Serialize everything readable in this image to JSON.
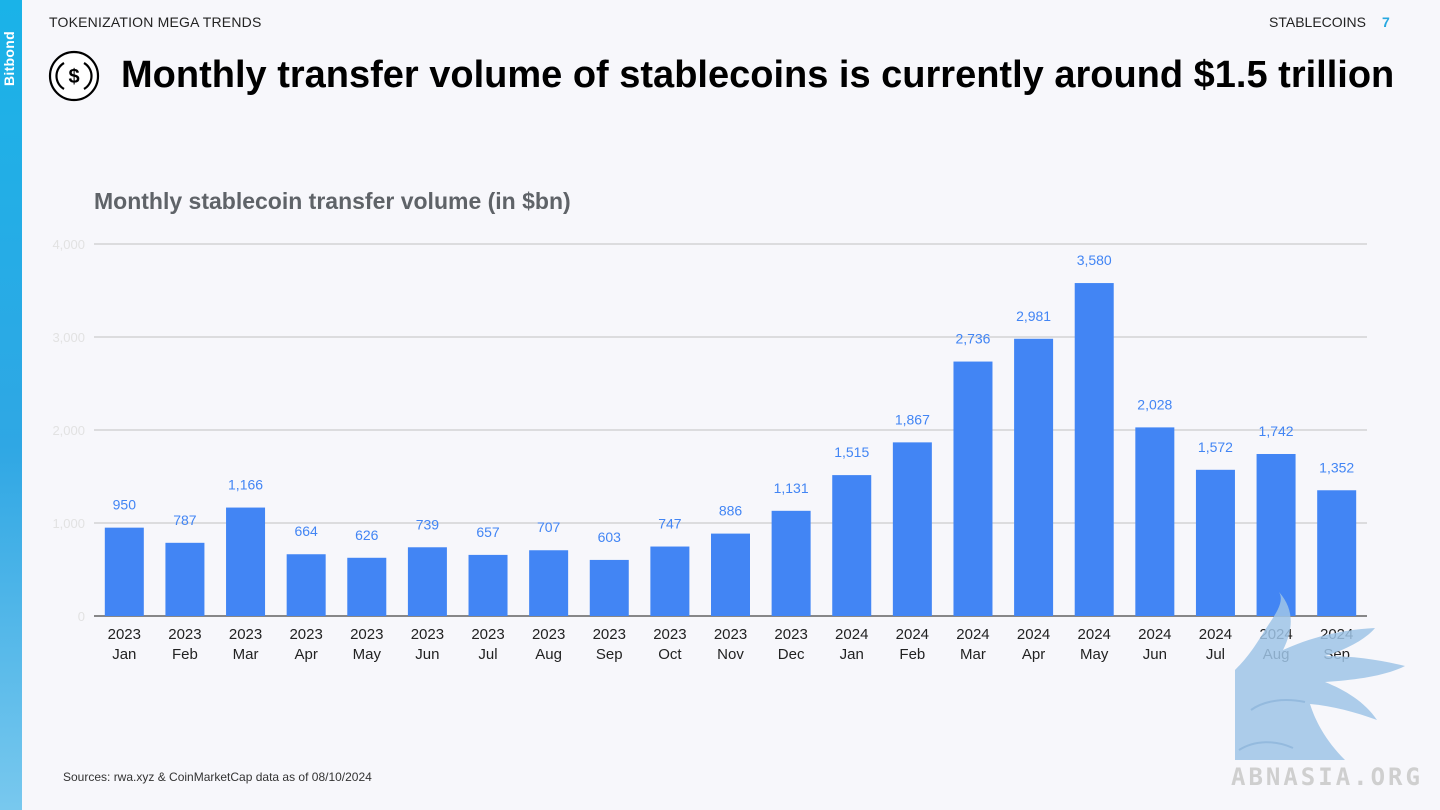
{
  "header": {
    "left_label": "TOKENIZATION MEGA TRENDS",
    "section_label": "STABLECOINS",
    "page_number": "7",
    "brand": "Bitbond"
  },
  "title": "Monthly transfer volume of stablecoins is currently around $1.5 trillion",
  "title_icon": "dollar-coin-icon",
  "source": "Sources: rwa.xyz & CoinMarketCap data as of 08/10/2024",
  "watermark": {
    "text": "ABNASIA.ORG",
    "art": "griffin-logo"
  },
  "colors": {
    "bar": "#4285f4",
    "value_label": "#4285f4",
    "accent": "#27a8e0",
    "grid": "#cccccc"
  },
  "chart_data": {
    "type": "bar",
    "title": "Monthly stablecoin transfer volume (in $bn)",
    "categories": [
      "2023 Jan",
      "2023 Feb",
      "2023 Mar",
      "2023 Apr",
      "2023 May",
      "2023 Jun",
      "2023 Jul",
      "2023 Aug",
      "2023 Sep",
      "2023 Oct",
      "2023 Nov",
      "2023 Dec",
      "2024 Jan",
      "2024 Feb",
      "2024 Mar",
      "2024 Apr",
      "2024 May",
      "2024 Jun",
      "2024 Jul",
      "2024 Aug",
      "2024 Sep"
    ],
    "values": [
      950,
      787,
      1166,
      664,
      626,
      739,
      657,
      707,
      603,
      747,
      886,
      1131,
      1515,
      1867,
      2736,
      2981,
      3580,
      2028,
      1572,
      1742,
      1352
    ],
    "value_labels": [
      "950",
      "787",
      "1,166",
      "664",
      "626",
      "739",
      "657",
      "707",
      "603",
      "747",
      "886",
      "1,131",
      "1,515",
      "1,867",
      "2,736",
      "2,981",
      "3,580",
      "2,028",
      "1,572",
      "1,742",
      "1,352"
    ],
    "y_ticks": [
      "0",
      "1,000",
      "2,000",
      "3,000",
      "4,000"
    ],
    "ylim": [
      0,
      4000
    ],
    "grid": true,
    "data_labels": true
  }
}
